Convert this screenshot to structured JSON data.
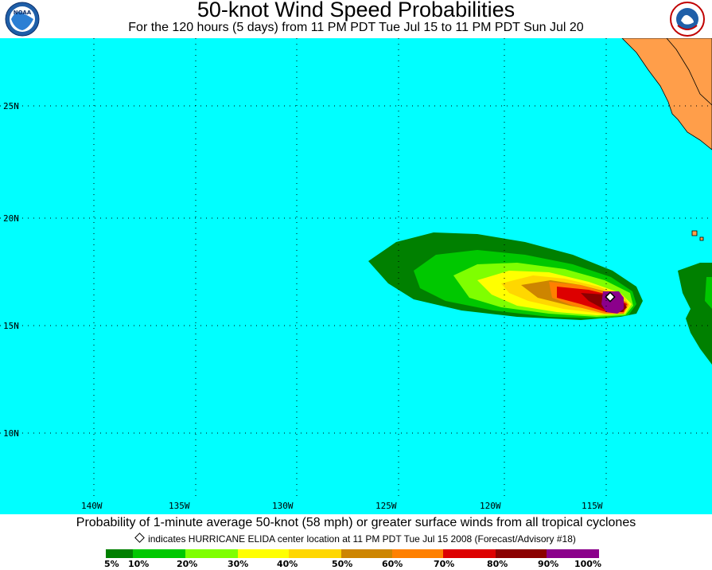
{
  "title": "50-knot Wind Speed Probabilities",
  "subtitle": "For the 120 hours (5 days) from 11 PM PDT Tue Jul 15 to 11 PM PDT Sun Jul 20",
  "logos": {
    "left": "NOAA",
    "right": "NATIONAL WEATHER SERVICE"
  },
  "map": {
    "ocean_color": "#00ffff",
    "land_color": "#ff9e4a",
    "lat_labels": [
      "25N",
      "20N",
      "15N",
      "10N"
    ],
    "lon_labels": [
      "140W",
      "135W",
      "130W",
      "125W",
      "120W",
      "115W"
    ],
    "storm": {
      "name": "HURRICANE ELIDA",
      "center_lon": -115.2,
      "center_lat": 16.4,
      "marker": "diamond"
    }
  },
  "caption": "Probability of 1-minute average 50-knot (58 mph) or greater surface winds from all tropical cyclones",
  "note": "indicates HURRICANE ELIDA center location at 11 PM PDT Tue Jul 15 2008 (Forecast/Advisory #18)",
  "legend": {
    "colors": [
      "#008000",
      "#00c800",
      "#7fff00",
      "#ffff00",
      "#ffd700",
      "#cd8500",
      "#ff8000",
      "#dd0000",
      "#8b0000",
      "#8b008b"
    ],
    "labels": [
      "5%",
      "10%",
      "20%",
      "30%",
      "40%",
      "50%",
      "60%",
      "70%",
      "80%",
      "90%",
      "100%"
    ]
  }
}
